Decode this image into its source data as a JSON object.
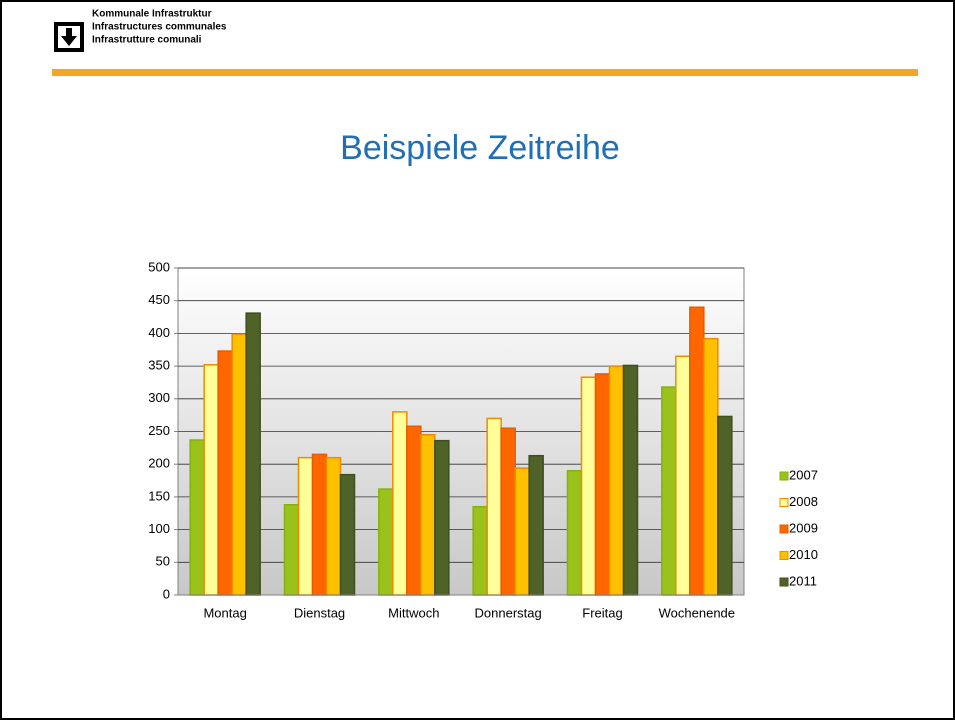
{
  "header": {
    "lines": [
      "Kommunale Infrastruktur",
      "Infrastructures communales",
      "Infrastrutture comunali"
    ]
  },
  "chart_data": {
    "type": "bar",
    "title": "Beispiele  Zeitreihe",
    "categories": [
      "Montag",
      "Dienstag",
      "Mittwoch",
      "Donnerstag",
      "Freitag",
      "Wochenende"
    ],
    "series": [
      {
        "name": "2007",
        "color": "#99c21a",
        "edgecolor": "#86b010",
        "values": [
          237,
          138,
          162,
          135,
          190,
          318
        ]
      },
      {
        "name": "2008",
        "color": "#ffff99",
        "edgecolor": "#f08a00",
        "values": [
          352,
          210,
          280,
          270,
          333,
          365
        ]
      },
      {
        "name": "2009",
        "color": "#ff6600",
        "edgecolor": "#e65c00",
        "values": [
          373,
          215,
          258,
          255,
          338,
          440
        ]
      },
      {
        "name": "2010",
        "color": "#ffc000",
        "edgecolor": "#f08a00",
        "values": [
          399,
          210,
          245,
          194,
          350,
          392
        ]
      },
      {
        "name": "2011",
        "color": "#4f6228",
        "edgecolor": "#3f4f1e",
        "values": [
          431,
          184,
          236,
          213,
          351,
          273
        ]
      }
    ],
    "ylim": [
      0,
      500
    ],
    "yticks": [
      0,
      50,
      100,
      150,
      200,
      250,
      300,
      350,
      400,
      450,
      500
    ],
    "grid": true,
    "legend": "right"
  }
}
